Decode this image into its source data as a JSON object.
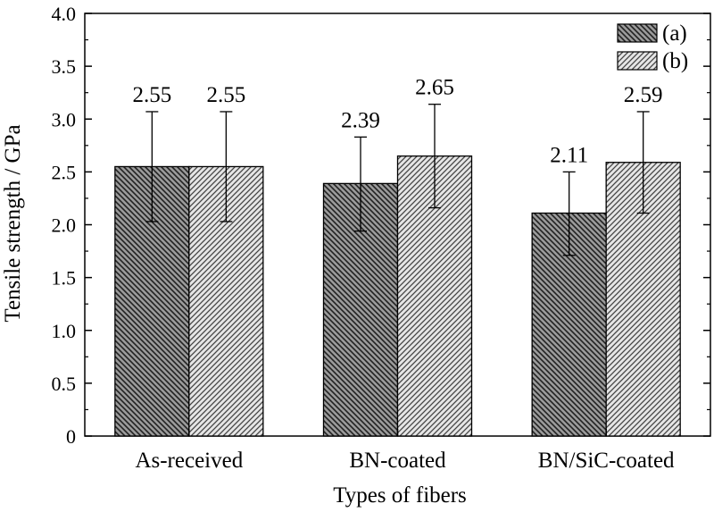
{
  "chart_data": {
    "type": "bar",
    "categories": [
      "As-received",
      "BN-coated",
      "BN/SiC-coated"
    ],
    "series": [
      {
        "name": "(a)",
        "values": [
          2.55,
          2.39,
          2.11
        ],
        "error_low": [
          2.03,
          1.94,
          1.71
        ],
        "error_high": [
          3.07,
          2.83,
          2.5
        ],
        "labels": [
          "2.55",
          "2.39",
          "2.11"
        ],
        "color": "#9a9a9a",
        "hatch": "dense diagonal (\\\\)"
      },
      {
        "name": "(b)",
        "values": [
          2.55,
          2.65,
          2.59
        ],
        "error_low": [
          2.03,
          2.16,
          2.11
        ],
        "error_high": [
          3.07,
          3.14,
          3.07
        ],
        "labels": [
          "2.55",
          "2.65",
          "2.59"
        ],
        "color": "#e6e6e6",
        "hatch": "diagonal (//)"
      }
    ],
    "xlabel": "Types of fibers",
    "ylabel": "Tensile strength / GPa",
    "ylim": [
      0,
      4.0
    ],
    "yticks": [
      0,
      0.5,
      1.0,
      1.5,
      2.0,
      2.5,
      3.0,
      3.5,
      4.0
    ],
    "ytick_labels": [
      "0",
      "0.5",
      "1.0",
      "1.5",
      "2.0",
      "2.5",
      "3.0",
      "3.5",
      "4.0"
    ],
    "grid": false,
    "legend_position": "top-right"
  }
}
